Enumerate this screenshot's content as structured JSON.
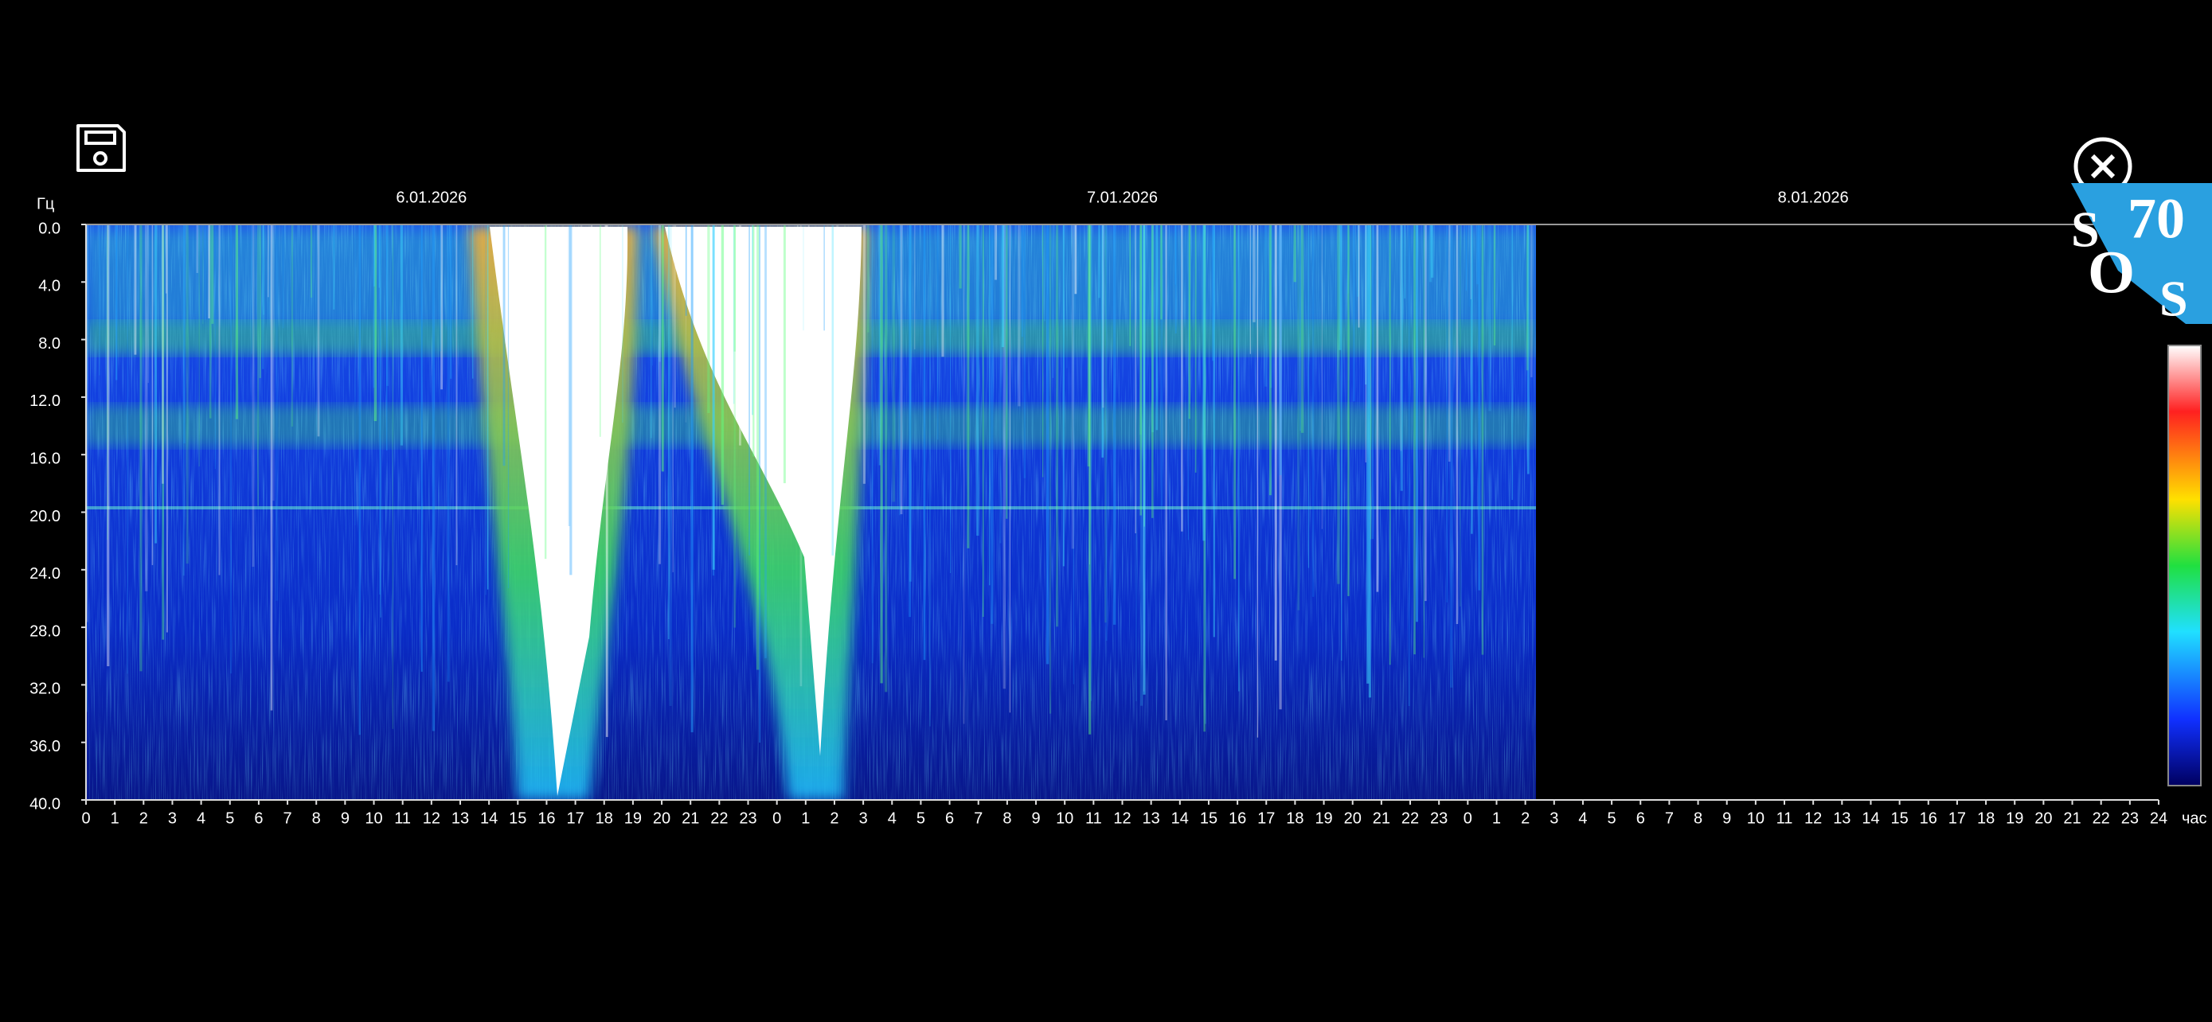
{
  "spectrogram": {
    "y_unit": "Гц",
    "x_unit": "час",
    "dates": [
      "6.01.2026",
      "7.01.2026",
      "8.01.2026"
    ],
    "y_ticks": [
      "0.0",
      "4.0",
      "8.0",
      "12.0",
      "16.0",
      "20.0",
      "24.0",
      "28.0",
      "32.0",
      "36.0",
      "40.0"
    ],
    "x_ticks": [
      "0",
      "1",
      "2",
      "3",
      "4",
      "5",
      "6",
      "7",
      "8",
      "9",
      "10",
      "11",
      "12",
      "13",
      "14",
      "15",
      "16",
      "17",
      "18",
      "19",
      "20",
      "21",
      "22",
      "23",
      "0",
      "1",
      "2",
      "3",
      "4",
      "5",
      "6",
      "7",
      "8",
      "9",
      "10",
      "11",
      "12",
      "13",
      "14",
      "15",
      "16",
      "17",
      "18",
      "19",
      "20",
      "21",
      "22",
      "23",
      "0",
      "1",
      "2",
      "3",
      "4",
      "5",
      "6",
      "7",
      "8",
      "9",
      "10",
      "11",
      "12",
      "13",
      "14",
      "15",
      "16",
      "17",
      "18",
      "19",
      "20",
      "21",
      "22",
      "23",
      "24"
    ]
  },
  "logo": {
    "texts": [
      "S",
      "70",
      "O",
      "S"
    ]
  }
}
